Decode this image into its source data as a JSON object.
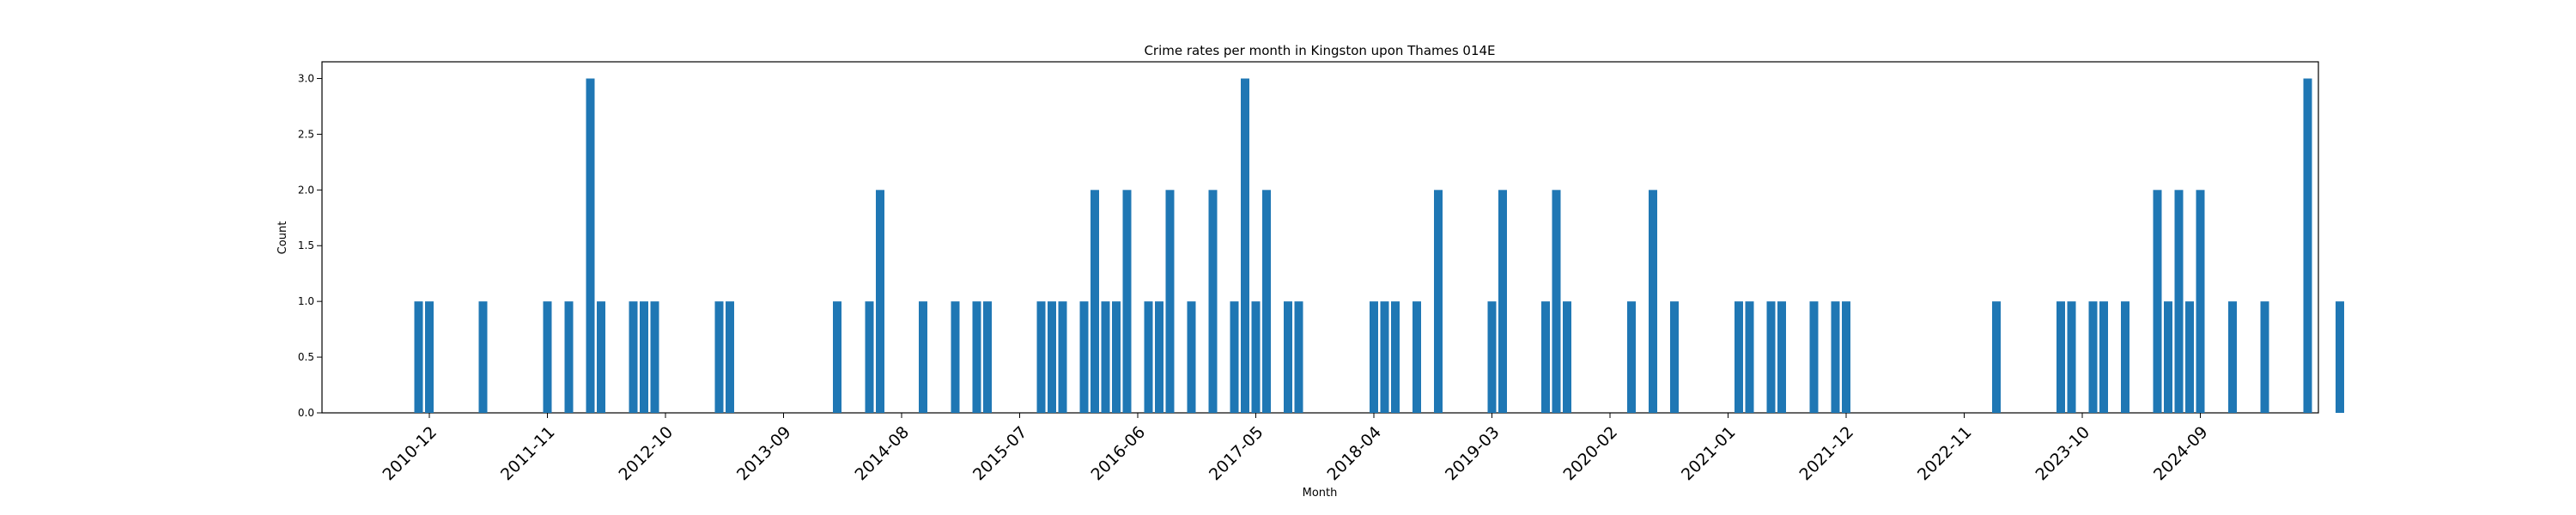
{
  "chart_data": {
    "type": "bar",
    "title": "Crime rates per month in Kingston upon Thames 014E",
    "xlabel": "Month",
    "ylabel": "Count",
    "ylim": [
      0,
      3.15
    ],
    "xlim": [
      "2010-02",
      "2025-08"
    ],
    "yticks": [
      0.0,
      0.5,
      1.0,
      1.5,
      2.0,
      2.5,
      3.0
    ],
    "xticks": [
      "2010-12",
      "2011-11",
      "2012-10",
      "2013-09",
      "2014-08",
      "2015-07",
      "2016-06",
      "2017-05",
      "2018-04",
      "2019-03",
      "2020-02",
      "2021-01",
      "2021-12",
      "2022-11",
      "2023-10",
      "2024-09"
    ],
    "grid": false,
    "bar_color": "#1f77b4",
    "x": [
      "2010-11",
      "2010-12",
      "2011-05",
      "2011-11",
      "2012-01",
      "2012-03",
      "2012-04",
      "2012-07",
      "2012-08",
      "2012-09",
      "2013-03",
      "2013-04",
      "2014-02",
      "2014-05",
      "2014-06",
      "2014-10",
      "2015-01",
      "2015-03",
      "2015-04",
      "2015-09",
      "2015-10",
      "2015-11",
      "2016-01",
      "2016-02",
      "2016-03",
      "2016-04",
      "2016-05",
      "2016-07",
      "2016-08",
      "2016-09",
      "2016-11",
      "2017-01",
      "2017-03",
      "2017-04",
      "2017-05",
      "2017-06",
      "2017-08",
      "2017-09",
      "2018-04",
      "2018-05",
      "2018-06",
      "2018-08",
      "2018-10",
      "2019-03",
      "2019-04",
      "2019-08",
      "2019-09",
      "2019-10",
      "2020-04",
      "2020-06",
      "2020-08",
      "2021-02",
      "2021-03",
      "2021-05",
      "2021-06",
      "2021-09",
      "2021-11",
      "2021-12",
      "2023-02",
      "2023-08",
      "2023-09",
      "2023-11",
      "2023-12",
      "2024-02",
      "2024-05",
      "2024-06",
      "2024-07",
      "2024-08",
      "2024-09",
      "2024-12",
      "2025-03",
      "2025-07",
      "2025-10"
    ],
    "values": [
      1,
      1,
      1,
      1,
      1,
      3,
      1,
      1,
      1,
      1,
      1,
      1,
      1,
      1,
      2,
      1,
      1,
      1,
      1,
      1,
      1,
      1,
      1,
      2,
      1,
      1,
      2,
      1,
      1,
      2,
      1,
      2,
      1,
      3,
      1,
      2,
      1,
      1,
      1,
      1,
      1,
      1,
      2,
      1,
      2,
      1,
      2,
      1,
      1,
      2,
      1,
      1,
      1,
      1,
      1,
      1,
      1,
      1,
      1,
      1,
      1,
      1,
      1,
      1,
      2,
      1,
      2,
      1,
      2,
      1,
      1,
      3,
      1
    ]
  }
}
